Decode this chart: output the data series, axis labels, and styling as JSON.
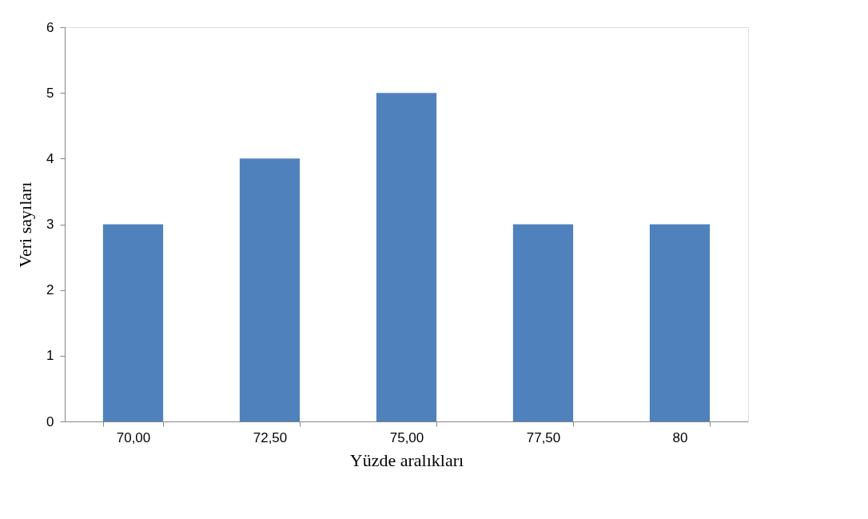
{
  "chart_data": {
    "type": "bar",
    "xlabel": "Yüzde aralıkları",
    "ylabel": "Veri sayıları",
    "categories": [
      "70,00",
      "72,50",
      "75,00",
      "77,50",
      "80"
    ],
    "values": [
      3,
      4,
      5,
      3,
      3
    ],
    "color": "#4f81bd",
    "ylim": [
      0,
      6
    ],
    "yticks": [
      0,
      1,
      2,
      3,
      4,
      5,
      6
    ],
    "grid": false
  }
}
